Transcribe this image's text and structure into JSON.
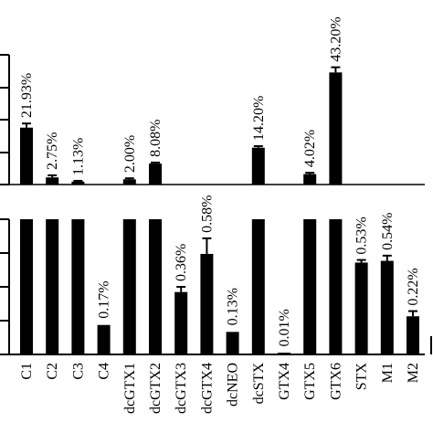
{
  "chart_data": {
    "type": "bar",
    "categories": [
      "C1",
      "C2",
      "C3",
      "C4",
      "dcGTX1",
      "dcGTX2",
      "dcGTX3",
      "dcGTX4",
      "dcNEO",
      "dcSTX",
      "GTX4",
      "GTX5",
      "GTX6",
      "STX",
      "M1",
      "M2"
    ],
    "bar_color": "#000000",
    "axis": "broken",
    "ylim": [
      0,
      50
    ],
    "series": [
      {
        "values": [
          21.93,
          2.75,
          1.13,
          0.17,
          2.0,
          8.08,
          0.36,
          0.58,
          0.13,
          14.2,
          0.01,
          4.02,
          43.2,
          0.53,
          0.54,
          0.22
        ],
        "errors": [
          1.6,
          0.8,
          0.3,
          0.005,
          0.4,
          0.4,
          0.03,
          0.09,
          0.005,
          0.6,
          0.003,
          0.5,
          2.0,
          0.015,
          0.03,
          0.03
        ],
        "labels": [
          "21.93%",
          "2.75%",
          "1.13%",
          "0.17%",
          "2.00%",
          "8.08%",
          "0.36%",
          "0.58%",
          "0.13%",
          "14.20%",
          "0.01%",
          "4.02%",
          "43.20%",
          "0.53%",
          "0.54%",
          "0.22%"
        ]
      }
    ]
  }
}
